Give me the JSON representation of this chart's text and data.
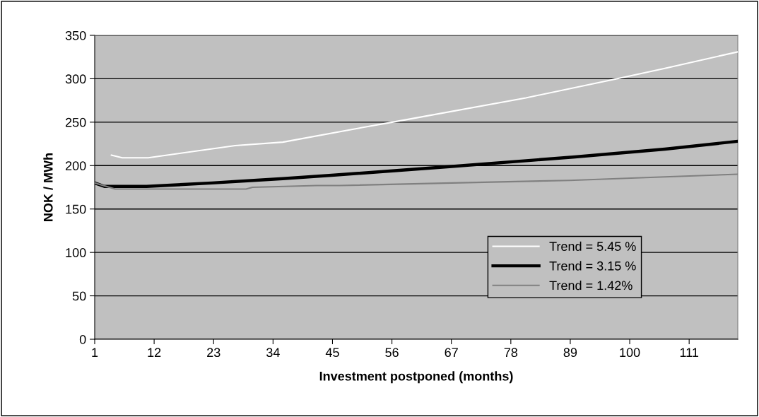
{
  "chart_data": {
    "type": "line",
    "xlabel": "Investment postponed (months)",
    "ylabel": "NOK / MWh",
    "xlim": [
      1,
      120
    ],
    "xticks": [
      1,
      12,
      23,
      34,
      45,
      56,
      67,
      78,
      89,
      100,
      111
    ],
    "ylim": [
      0,
      350
    ],
    "yticks": [
      0,
      50,
      100,
      150,
      200,
      250,
      300,
      350
    ],
    "grid": "y",
    "legend": "bottom right",
    "marker": "none",
    "line_style": "solid",
    "series": [
      {
        "name": "Trend = 5.45 %",
        "color": "#ffffff",
        "x": [
          4.1,
          6.1,
          10.9,
          27,
          35.8,
          48.9,
          57,
          80.8,
          97.6,
          106.5,
          120
        ],
        "values": [
          212,
          209,
          209,
          223,
          227,
          242,
          251,
          278,
          300,
          312,
          331
        ]
      },
      {
        "name": "Trend = 3.15 %",
        "color": "#000000",
        "x": [
          1,
          2.8,
          10.6,
          22.7,
          35.8,
          45.3,
          67.1,
          89.9,
          106.5,
          120
        ],
        "values": [
          180,
          176,
          176,
          180,
          185,
          189,
          199,
          210,
          219,
          228
        ]
      },
      {
        "name": "Trend = 1.42%",
        "color": "#808080",
        "x": [
          1,
          4.8,
          29,
          30.2,
          42.1,
          46.3,
          67.1,
          88.9,
          106.5,
          120
        ],
        "values": [
          180,
          173,
          173,
          175,
          177,
          177,
          180,
          183,
          187,
          190
        ]
      }
    ]
  }
}
